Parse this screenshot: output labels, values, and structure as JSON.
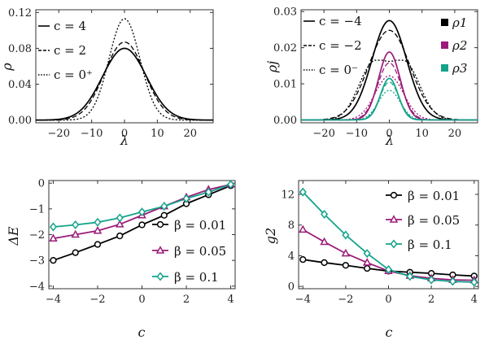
{
  "chart_data": [
    {
      "type": "line",
      "panel": "top-left",
      "xlabel": "λ",
      "ylabel": "ρ",
      "xlim": [
        -27,
        27
      ],
      "ylim": [
        -0.003,
        0.123
      ],
      "xticks": [
        -20,
        -10,
        0,
        10,
        20
      ],
      "xtick_labels": [
        "−20",
        "−10",
        "0",
        "10",
        "20"
      ],
      "yticks": [
        0,
        0.04,
        0.08,
        0.12
      ],
      "ytick_labels": [
        "0.00",
        "0.04",
        "0.08",
        "0.12"
      ],
      "legend_position": "top-left",
      "series": [
        {
          "name": "c = 4",
          "style": "solid",
          "shape": {
            "amplitude": 0.08,
            "width": 6.7
          }
        },
        {
          "name": "c = 2",
          "style": "dashed",
          "shape": {
            "amplitude": 0.087,
            "width": 6.1
          }
        },
        {
          "name": "c = 0⁺",
          "style": "dotted",
          "shape": {
            "amplitude": 0.113,
            "width": 4.7
          }
        }
      ]
    },
    {
      "type": "line",
      "panel": "top-right",
      "xlabel": "λ",
      "ylabel": "ρj",
      "xlim": [
        -27,
        27
      ],
      "ylim": [
        -0.0008,
        0.0305
      ],
      "xticks": [
        -20,
        -10,
        0,
        10,
        20
      ],
      "xtick_labels": [
        "−20",
        "−10",
        "0",
        "10",
        "20"
      ],
      "yticks": [
        0,
        0.01,
        0.02,
        0.03
      ],
      "ytick_labels": [
        "0.00",
        "0.01",
        "0.02",
        "0.03"
      ],
      "legend_styles": [
        "c = −4",
        "c = −2",
        "c = 0⁻"
      ],
      "legend_colors": [
        {
          "label": "ρ1",
          "color": "#000000"
        },
        {
          "label": "ρ2",
          "color": "#9b1b7a"
        },
        {
          "label": "ρ3",
          "color": "#14a38a"
        }
      ],
      "series": [
        {
          "color": "#000000",
          "style": "solid",
          "shape": {
            "type": "gauss",
            "amplitude": 0.0275,
            "width": 5.3
          }
        },
        {
          "color": "#000000",
          "style": "dashed",
          "shape": {
            "type": "gauss",
            "amplitude": 0.0248,
            "width": 6.3
          }
        },
        {
          "color": "#000000",
          "style": "dotted",
          "shape": {
            "type": "double",
            "amplitude": 0.0162,
            "width": 4.5,
            "offset": 5.0
          }
        },
        {
          "color": "#9b1b7a",
          "style": "solid",
          "shape": {
            "type": "gauss",
            "amplitude": 0.0188,
            "width": 3.3
          }
        },
        {
          "color": "#9b1b7a",
          "style": "dashed",
          "shape": {
            "type": "gauss",
            "amplitude": 0.0158,
            "width": 3.6
          }
        },
        {
          "color": "#9b1b7a",
          "style": "dotted",
          "shape": {
            "type": "gauss",
            "amplitude": 0.0122,
            "width": 4.3
          }
        },
        {
          "color": "#14a38a",
          "style": "solid",
          "shape": {
            "type": "gauss",
            "amplitude": 0.0115,
            "width": 2.7
          }
        },
        {
          "color": "#14a38a",
          "style": "dashed",
          "shape": {
            "type": "gauss",
            "amplitude": 0.0105,
            "width": 2.9
          }
        },
        {
          "color": "#14a38a",
          "style": "dotted",
          "shape": {
            "type": "gauss",
            "amplitude": 0.0082,
            "width": 3.3
          }
        }
      ]
    },
    {
      "type": "line",
      "panel": "bottom-left",
      "xlabel": "c",
      "ylabel": "ΔE",
      "xlim": [
        -4.2,
        4.2
      ],
      "ylim": [
        -4.1,
        0.1
      ],
      "xticks": [
        -4,
        -2,
        0,
        2,
        4
      ],
      "xtick_labels": [
        "−4",
        "−2",
        "0",
        "2",
        "4"
      ],
      "yticks": [
        0,
        -1,
        -2,
        -3,
        -4
      ],
      "ytick_labels": [
        "0",
        "−1",
        "−2",
        "−3",
        "−4"
      ],
      "legend_position": "bottom-right",
      "x": [
        -4,
        -3,
        -2,
        -1,
        0,
        1,
        2,
        3,
        4
      ],
      "series": [
        {
          "name": "β = 0.01",
          "color": "#000000",
          "marker": "circle",
          "values": [
            -3.0,
            -2.7,
            -2.38,
            -2.05,
            -1.62,
            -1.25,
            -0.8,
            -0.45,
            -0.1
          ]
        },
        {
          "name": "β = 0.05",
          "color": "#9b1b7a",
          "marker": "triangle",
          "values": [
            -2.15,
            -2.0,
            -1.85,
            -1.6,
            -1.25,
            -0.9,
            -0.55,
            -0.25,
            -0.05
          ]
        },
        {
          "name": "β = 0.1",
          "color": "#14a38a",
          "marker": "diamond",
          "values": [
            -1.7,
            -1.62,
            -1.52,
            -1.35,
            -1.12,
            -0.9,
            -0.6,
            -0.35,
            -0.05
          ]
        }
      ]
    },
    {
      "type": "line",
      "panel": "bottom-right",
      "xlabel": "c",
      "ylabel": "g2",
      "xlim": [
        -4.2,
        4.2
      ],
      "ylim": [
        -0.3,
        13.8
      ],
      "xticks": [
        -4,
        -2,
        0,
        2,
        4
      ],
      "xtick_labels": [
        "−4",
        "−2",
        "0",
        "2",
        "4"
      ],
      "yticks": [
        0,
        4,
        8,
        12
      ],
      "ytick_labels": [
        "0",
        "4",
        "8",
        "12"
      ],
      "legend_position": "top-right",
      "x": [
        -4,
        -3,
        -2,
        -1,
        0,
        1,
        2,
        3,
        4
      ],
      "series": [
        {
          "name": "β = 0.01",
          "color": "#000000",
          "marker": "circle",
          "values": [
            3.5,
            3.1,
            2.75,
            2.35,
            2.0,
            1.85,
            1.7,
            1.5,
            1.35
          ]
        },
        {
          "name": "β = 0.05",
          "color": "#9b1b7a",
          "marker": "triangle",
          "values": [
            7.4,
            5.8,
            4.3,
            3.1,
            2.0,
            1.4,
            1.05,
            0.85,
            0.8
          ]
        },
        {
          "name": "β = 0.1",
          "color": "#14a38a",
          "marker": "diamond",
          "values": [
            12.3,
            9.4,
            6.7,
            4.3,
            2.2,
            1.3,
            0.85,
            0.65,
            0.55
          ]
        }
      ]
    }
  ]
}
